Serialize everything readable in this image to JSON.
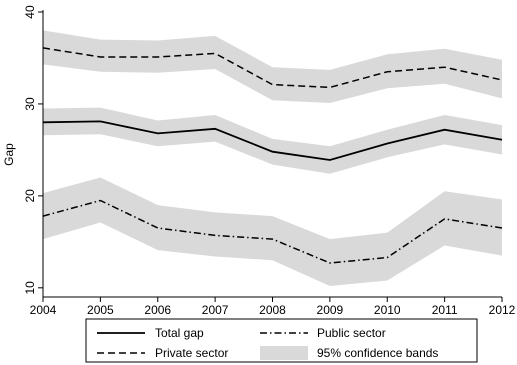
{
  "chart_data": {
    "type": "line",
    "x": [
      2004,
      2005,
      2006,
      2007,
      2008,
      2009,
      2010,
      2011,
      2012
    ],
    "xticks": [
      "2004",
      "2005",
      "2006",
      "2007",
      "2008",
      "2009",
      "2010",
      "2011",
      "2012"
    ],
    "ylabel": "Gap",
    "ylim": [
      9,
      40
    ],
    "yticks": [
      "10",
      "20",
      "30",
      "40"
    ],
    "ytick_values": [
      10,
      20,
      30,
      40
    ],
    "series": [
      {
        "name": "Private sector",
        "style": "dashed",
        "values": [
          36.1,
          35.1,
          35.1,
          35.5,
          32.1,
          31.8,
          33.5,
          34.0,
          32.6
        ],
        "lower": [
          34.3,
          33.5,
          33.4,
          33.8,
          30.4,
          30.1,
          31.7,
          32.2,
          30.6
        ],
        "upper": [
          38.0,
          37.0,
          36.9,
          37.4,
          34.0,
          33.7,
          35.4,
          36.0,
          34.8
        ]
      },
      {
        "name": "Total gap",
        "style": "solid",
        "values": [
          28.0,
          28.1,
          26.8,
          27.3,
          24.8,
          23.9,
          25.7,
          27.2,
          26.1
        ],
        "lower": [
          26.6,
          26.7,
          25.4,
          25.9,
          23.4,
          22.4,
          24.2,
          25.6,
          24.5
        ],
        "upper": [
          29.5,
          29.6,
          28.2,
          28.8,
          26.2,
          25.4,
          27.2,
          28.8,
          27.7
        ]
      },
      {
        "name": "Public sector",
        "style": "dashdot",
        "values": [
          17.8,
          19.5,
          16.5,
          15.7,
          15.3,
          12.7,
          13.3,
          17.5,
          16.5
        ],
        "lower": [
          15.3,
          17.1,
          14.1,
          13.4,
          13.0,
          10.2,
          10.8,
          14.6,
          13.5
        ],
        "upper": [
          20.3,
          22.0,
          19.0,
          18.2,
          17.8,
          15.3,
          16.0,
          20.5,
          19.6
        ]
      }
    ],
    "legend": {
      "position": "bottom",
      "entries": [
        "Total gap",
        "Public sector",
        "Private sector",
        "95% confidence bands"
      ]
    },
    "grid": false
  },
  "colors": {
    "line": "#000000",
    "band": "#d9d9d9",
    "axis": "#000000"
  }
}
